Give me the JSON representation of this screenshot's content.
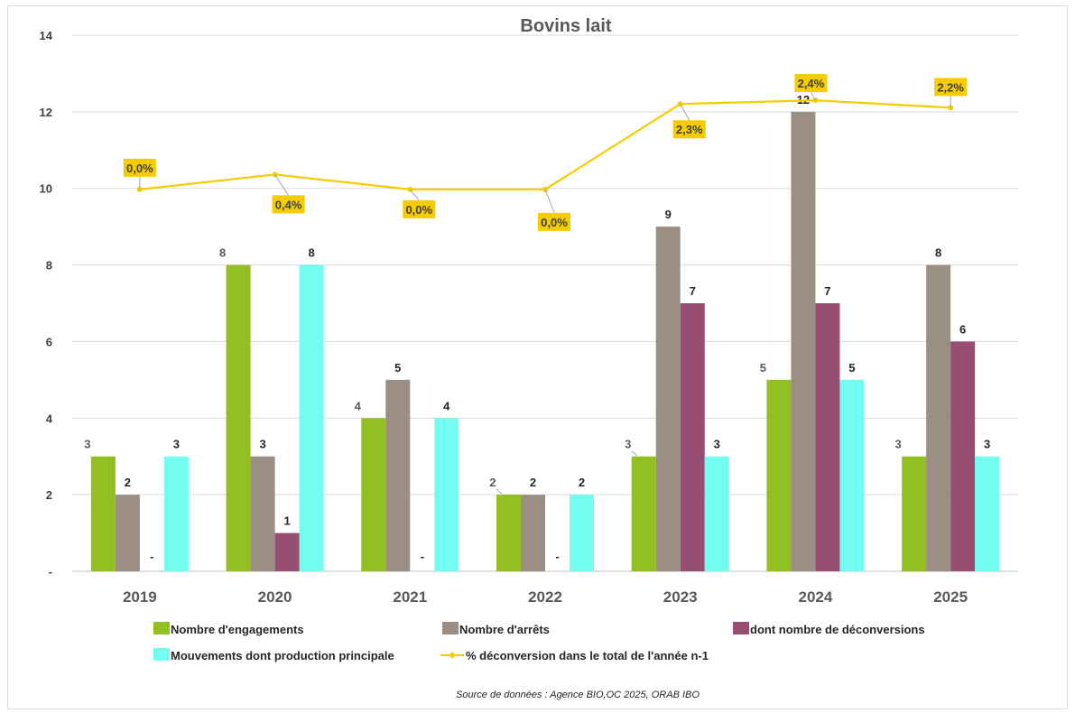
{
  "chart_data": {
    "type": "bar",
    "title": "Bovins lait",
    "source": "Source de données : Agence BIO,OC 2025, ORAB IBO",
    "categories": [
      "2019",
      "2020",
      "2021",
      "2022",
      "2023",
      "2024",
      "2025"
    ],
    "ylim": [
      0,
      14
    ],
    "yticks": [
      "-",
      "2",
      "4",
      "6",
      "8",
      "10",
      "12",
      "14"
    ],
    "grid": true,
    "legend_position": "bottom",
    "series": [
      {
        "name": "Nombre d'engagements",
        "type": "bar",
        "color": "#92c020",
        "values": [
          3,
          8,
          4,
          2,
          3,
          5,
          3
        ],
        "labels": [
          "3",
          "8",
          "4",
          "2",
          "3",
          "5",
          "3"
        ]
      },
      {
        "name": "Nombre d'arrêts",
        "type": "bar",
        "color": "#9b8f84",
        "values": [
          2,
          3,
          5,
          2,
          9,
          12,
          8
        ],
        "labels": [
          "2",
          "3",
          "5",
          "2",
          "9",
          "12",
          "8"
        ]
      },
      {
        "name": "dont nombre de déconversions",
        "type": "bar",
        "color": "#964f72",
        "values": [
          0,
          1,
          0,
          0,
          7,
          7,
          6
        ],
        "labels": [
          "-",
          "1",
          "-",
          "-",
          "7",
          "7",
          "6"
        ]
      },
      {
        "name": "Mouvements dont production principale",
        "type": "bar",
        "color": "#72fdf0",
        "values": [
          3,
          8,
          4,
          2,
          3,
          5,
          3
        ],
        "labels": [
          "3",
          "8",
          "4",
          "2",
          "3",
          "5",
          "3"
        ]
      },
      {
        "name": "% déconversion dans le total de l'année n-1",
        "type": "line",
        "color": "#f5cc00",
        "label_bg": "#f5cc00",
        "values": [
          0.0,
          0.4,
          0.0,
          0.0,
          2.3,
          2.4,
          2.2
        ],
        "labels": [
          "0,0%",
          "0,4%",
          "0,0%",
          "0,0%",
          "2,3%",
          "2,4%",
          "2,2%"
        ]
      }
    ]
  }
}
